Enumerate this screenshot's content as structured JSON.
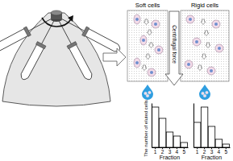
{
  "diagram": {
    "panels": [
      "Soft cells",
      "Rigid cells"
    ],
    "arrow_label": "Centrifugal force"
  },
  "chart_data": [
    {
      "type": "bar",
      "categories": [
        "1",
        "2",
        "3",
        "4",
        "5"
      ],
      "values": [
        100,
        72,
        38,
        28,
        12
      ],
      "ylim": [
        0,
        110
      ],
      "xlabel": "Fraction",
      "ylabel": "The number of eluted cells",
      "color": "#ffffff",
      "tick_labels": "x"
    },
    {
      "type": "bar",
      "categories": [
        "1",
        "2",
        "3",
        "4",
        "5"
      ],
      "values": [
        62,
        100,
        52,
        20,
        8
      ],
      "ylim": [
        0,
        110
      ],
      "xlabel": "Fraction",
      "color": "#ffffff",
      "tick_labels": "x"
    }
  ]
}
